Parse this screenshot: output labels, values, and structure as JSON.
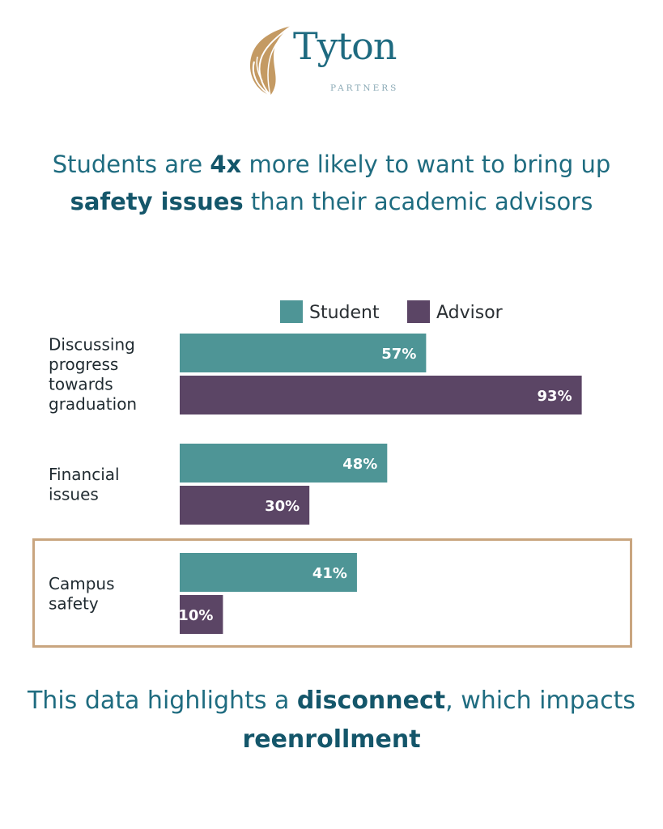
{
  "brand": {
    "name": "Tyton",
    "subtitle": "PARTNERS",
    "logo_icon": "shell-icon"
  },
  "headline": {
    "t1": "Students are ",
    "b1": "4x",
    "t2": " more likely to want to bring up ",
    "b2": "safety issues",
    "t3": " than their academic advisors"
  },
  "chart_data": {
    "type": "bar",
    "orientation": "horizontal",
    "categories": [
      [
        "Discussing",
        "progress",
        "towards",
        "graduation"
      ],
      [
        "Financial",
        "issues"
      ],
      [
        "Campus",
        "safety"
      ]
    ],
    "series": [
      {
        "name": "Student",
        "values": [
          57,
          48,
          41
        ],
        "labels": [
          "57%",
          "48%",
          "41%"
        ],
        "color": "#4e9596"
      },
      {
        "name": "Advisor",
        "values": [
          93,
          30,
          10
        ],
        "labels": [
          "93%",
          "30%",
          "10%"
        ],
        "color": "#5b4565"
      }
    ],
    "xlim": [
      0,
      100
    ],
    "legend_position": "top",
    "highlighted_category": "Campus safety",
    "highlight_color": "#c9a57f",
    "grid": false
  },
  "footer": {
    "t1": "This data highlights a ",
    "b1": "disconnect",
    "t2": ", which impacts ",
    "b2": "reenrollment"
  }
}
